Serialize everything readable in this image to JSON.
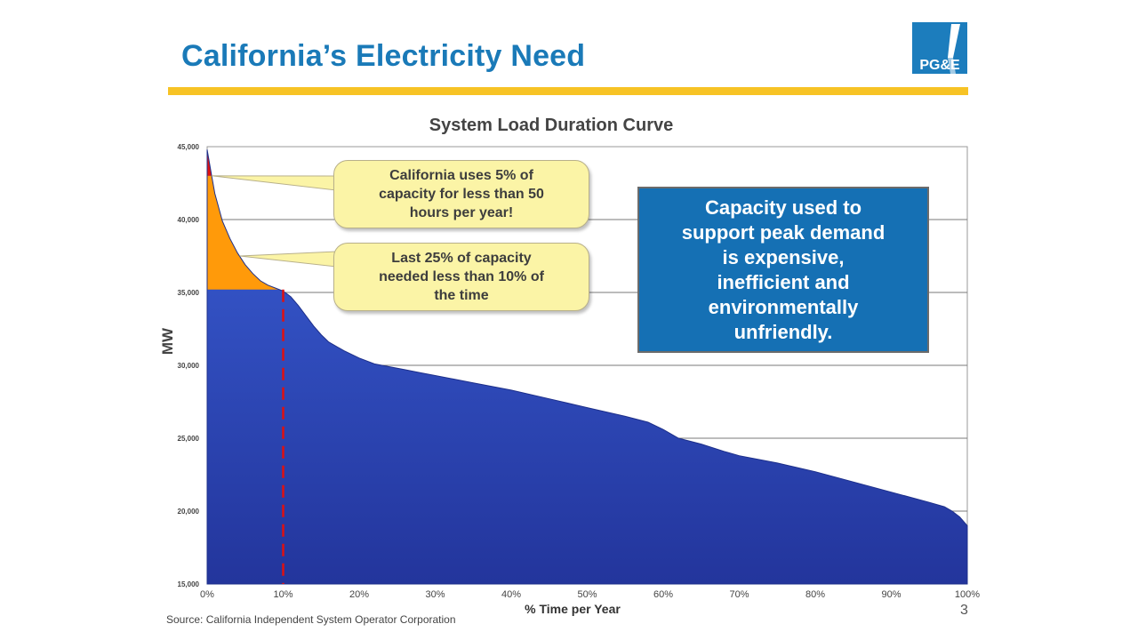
{
  "slide": {
    "title": "California’s Electricity Need",
    "logo_text": "PG&E",
    "source": "Source: California Independent System Operator Corporation",
    "page_number": "3"
  },
  "callouts": {
    "peak_5pct": "California uses 5% of\ncapacity for less than 50\nhours per year!",
    "last_25pct": "Last 25% of capacity\nneeded less than 10% of\nthe time"
  },
  "message_box": "Capacity used to\nsupport peak demand\nis expensive,\ninefficient and\nenvironmentally\nunfriendly.",
  "colors": {
    "title_blue": "#1a7ab8",
    "rule_yellow": "#f7c325",
    "area_blue": "#2d4bc0",
    "peak_red": "#e01010",
    "upper_orange": "#ff9a0a",
    "marker_red": "#e01010",
    "callout_fill": "#fbf4a6",
    "message_box_fill": "#1570b4"
  },
  "chart_data": {
    "type": "area",
    "title": "System Load Duration Curve",
    "xlabel": "% Time per Year",
    "ylabel": "MW",
    "xlim": [
      0,
      100
    ],
    "ylim": [
      15000,
      45000
    ],
    "x_ticks": [
      "0%",
      "10%",
      "20%",
      "30%",
      "40%",
      "50%",
      "60%",
      "70%",
      "80%",
      "90%",
      "100%"
    ],
    "y_ticks": [
      "45,000",
      "40,000",
      "35,000",
      "30,000",
      "25,000",
      "20,000",
      "15,000"
    ],
    "grid": "horizontal",
    "series": [
      {
        "x": [
          0,
          0.6,
          1,
          2,
          3,
          4,
          5,
          6,
          7,
          8,
          9,
          10,
          11,
          12,
          13,
          14,
          15,
          16,
          18,
          20,
          22,
          24,
          26,
          28,
          30,
          35,
          40,
          45,
          50,
          55,
          58,
          60,
          62,
          65,
          68,
          70,
          75,
          80,
          85,
          90,
          95,
          97,
          98,
          99,
          100
        ],
        "values": [
          44800,
          43000,
          41800,
          39900,
          38700,
          37700,
          36900,
          36300,
          35800,
          35500,
          35300,
          35100,
          34700,
          34100,
          33400,
          32700,
          32100,
          31600,
          31000,
          30500,
          30100,
          29900,
          29700,
          29500,
          29300,
          28800,
          28300,
          27700,
          27100,
          26500,
          26100,
          25600,
          25000,
          24600,
          24100,
          23800,
          23300,
          22700,
          22000,
          21300,
          20600,
          20300,
          20000,
          19600,
          19000
        ]
      }
    ],
    "bands": [
      {
        "from": 43000,
        "to": 45000,
        "color": "#e01010"
      },
      {
        "from": 35200,
        "to": 43000,
        "color": "#ff9a0a"
      }
    ],
    "vertical_marker": {
      "x": 10,
      "style": "dashed",
      "color": "#e01010"
    }
  }
}
